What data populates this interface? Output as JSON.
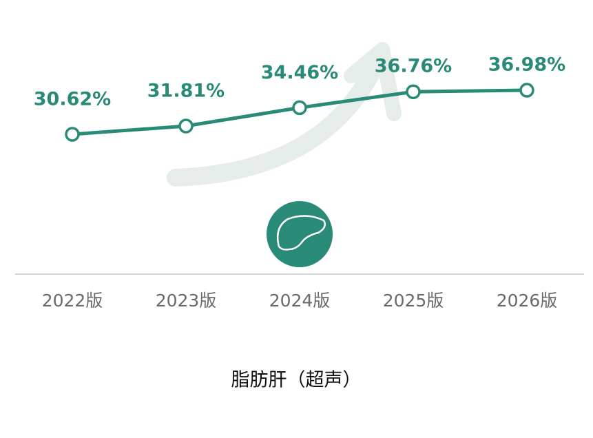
{
  "chart_data": {
    "type": "line",
    "title": "脂肪肝（超声）",
    "categories": [
      "2022版",
      "2023版",
      "2024版",
      "2025版",
      "2026版"
    ],
    "values": [
      30.62,
      31.81,
      34.46,
      36.76,
      36.98
    ],
    "value_labels": [
      "30.62%",
      "31.81%",
      "34.46%",
      "36.76%",
      "36.98%"
    ],
    "color": "#2a8a78"
  }
}
